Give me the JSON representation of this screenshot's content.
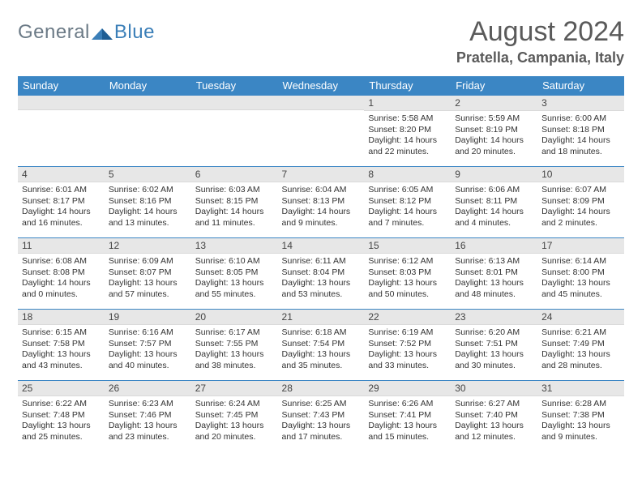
{
  "logo": {
    "general": "General",
    "blue": "Blue"
  },
  "title": "August 2024",
  "location": "Pratella, Campania, Italy",
  "colors": {
    "header_bg": "#3b86c4",
    "header_text": "#ffffff",
    "band_bg": "#e7e7e7",
    "rule": "#3b86c4",
    "logo_general": "#6b7a86",
    "logo_blue": "#3b7fb8",
    "title_text": "#5a5a5a"
  },
  "dow": [
    "Sunday",
    "Monday",
    "Tuesday",
    "Wednesday",
    "Thursday",
    "Friday",
    "Saturday"
  ],
  "weeks": [
    [
      {
        "n": "",
        "sr": "",
        "ss": "",
        "dl": ""
      },
      {
        "n": "",
        "sr": "",
        "ss": "",
        "dl": ""
      },
      {
        "n": "",
        "sr": "",
        "ss": "",
        "dl": ""
      },
      {
        "n": "",
        "sr": "",
        "ss": "",
        "dl": ""
      },
      {
        "n": "1",
        "sr": "Sunrise: 5:58 AM",
        "ss": "Sunset: 8:20 PM",
        "dl": "Daylight: 14 hours and 22 minutes."
      },
      {
        "n": "2",
        "sr": "Sunrise: 5:59 AM",
        "ss": "Sunset: 8:19 PM",
        "dl": "Daylight: 14 hours and 20 minutes."
      },
      {
        "n": "3",
        "sr": "Sunrise: 6:00 AM",
        "ss": "Sunset: 8:18 PM",
        "dl": "Daylight: 14 hours and 18 minutes."
      }
    ],
    [
      {
        "n": "4",
        "sr": "Sunrise: 6:01 AM",
        "ss": "Sunset: 8:17 PM",
        "dl": "Daylight: 14 hours and 16 minutes."
      },
      {
        "n": "5",
        "sr": "Sunrise: 6:02 AM",
        "ss": "Sunset: 8:16 PM",
        "dl": "Daylight: 14 hours and 13 minutes."
      },
      {
        "n": "6",
        "sr": "Sunrise: 6:03 AM",
        "ss": "Sunset: 8:15 PM",
        "dl": "Daylight: 14 hours and 11 minutes."
      },
      {
        "n": "7",
        "sr": "Sunrise: 6:04 AM",
        "ss": "Sunset: 8:13 PM",
        "dl": "Daylight: 14 hours and 9 minutes."
      },
      {
        "n": "8",
        "sr": "Sunrise: 6:05 AM",
        "ss": "Sunset: 8:12 PM",
        "dl": "Daylight: 14 hours and 7 minutes."
      },
      {
        "n": "9",
        "sr": "Sunrise: 6:06 AM",
        "ss": "Sunset: 8:11 PM",
        "dl": "Daylight: 14 hours and 4 minutes."
      },
      {
        "n": "10",
        "sr": "Sunrise: 6:07 AM",
        "ss": "Sunset: 8:09 PM",
        "dl": "Daylight: 14 hours and 2 minutes."
      }
    ],
    [
      {
        "n": "11",
        "sr": "Sunrise: 6:08 AM",
        "ss": "Sunset: 8:08 PM",
        "dl": "Daylight: 14 hours and 0 minutes."
      },
      {
        "n": "12",
        "sr": "Sunrise: 6:09 AM",
        "ss": "Sunset: 8:07 PM",
        "dl": "Daylight: 13 hours and 57 minutes."
      },
      {
        "n": "13",
        "sr": "Sunrise: 6:10 AM",
        "ss": "Sunset: 8:05 PM",
        "dl": "Daylight: 13 hours and 55 minutes."
      },
      {
        "n": "14",
        "sr": "Sunrise: 6:11 AM",
        "ss": "Sunset: 8:04 PM",
        "dl": "Daylight: 13 hours and 53 minutes."
      },
      {
        "n": "15",
        "sr": "Sunrise: 6:12 AM",
        "ss": "Sunset: 8:03 PM",
        "dl": "Daylight: 13 hours and 50 minutes."
      },
      {
        "n": "16",
        "sr": "Sunrise: 6:13 AM",
        "ss": "Sunset: 8:01 PM",
        "dl": "Daylight: 13 hours and 48 minutes."
      },
      {
        "n": "17",
        "sr": "Sunrise: 6:14 AM",
        "ss": "Sunset: 8:00 PM",
        "dl": "Daylight: 13 hours and 45 minutes."
      }
    ],
    [
      {
        "n": "18",
        "sr": "Sunrise: 6:15 AM",
        "ss": "Sunset: 7:58 PM",
        "dl": "Daylight: 13 hours and 43 minutes."
      },
      {
        "n": "19",
        "sr": "Sunrise: 6:16 AM",
        "ss": "Sunset: 7:57 PM",
        "dl": "Daylight: 13 hours and 40 minutes."
      },
      {
        "n": "20",
        "sr": "Sunrise: 6:17 AM",
        "ss": "Sunset: 7:55 PM",
        "dl": "Daylight: 13 hours and 38 minutes."
      },
      {
        "n": "21",
        "sr": "Sunrise: 6:18 AM",
        "ss": "Sunset: 7:54 PM",
        "dl": "Daylight: 13 hours and 35 minutes."
      },
      {
        "n": "22",
        "sr": "Sunrise: 6:19 AM",
        "ss": "Sunset: 7:52 PM",
        "dl": "Daylight: 13 hours and 33 minutes."
      },
      {
        "n": "23",
        "sr": "Sunrise: 6:20 AM",
        "ss": "Sunset: 7:51 PM",
        "dl": "Daylight: 13 hours and 30 minutes."
      },
      {
        "n": "24",
        "sr": "Sunrise: 6:21 AM",
        "ss": "Sunset: 7:49 PM",
        "dl": "Daylight: 13 hours and 28 minutes."
      }
    ],
    [
      {
        "n": "25",
        "sr": "Sunrise: 6:22 AM",
        "ss": "Sunset: 7:48 PM",
        "dl": "Daylight: 13 hours and 25 minutes."
      },
      {
        "n": "26",
        "sr": "Sunrise: 6:23 AM",
        "ss": "Sunset: 7:46 PM",
        "dl": "Daylight: 13 hours and 23 minutes."
      },
      {
        "n": "27",
        "sr": "Sunrise: 6:24 AM",
        "ss": "Sunset: 7:45 PM",
        "dl": "Daylight: 13 hours and 20 minutes."
      },
      {
        "n": "28",
        "sr": "Sunrise: 6:25 AM",
        "ss": "Sunset: 7:43 PM",
        "dl": "Daylight: 13 hours and 17 minutes."
      },
      {
        "n": "29",
        "sr": "Sunrise: 6:26 AM",
        "ss": "Sunset: 7:41 PM",
        "dl": "Daylight: 13 hours and 15 minutes."
      },
      {
        "n": "30",
        "sr": "Sunrise: 6:27 AM",
        "ss": "Sunset: 7:40 PM",
        "dl": "Daylight: 13 hours and 12 minutes."
      },
      {
        "n": "31",
        "sr": "Sunrise: 6:28 AM",
        "ss": "Sunset: 7:38 PM",
        "dl": "Daylight: 13 hours and 9 minutes."
      }
    ]
  ]
}
